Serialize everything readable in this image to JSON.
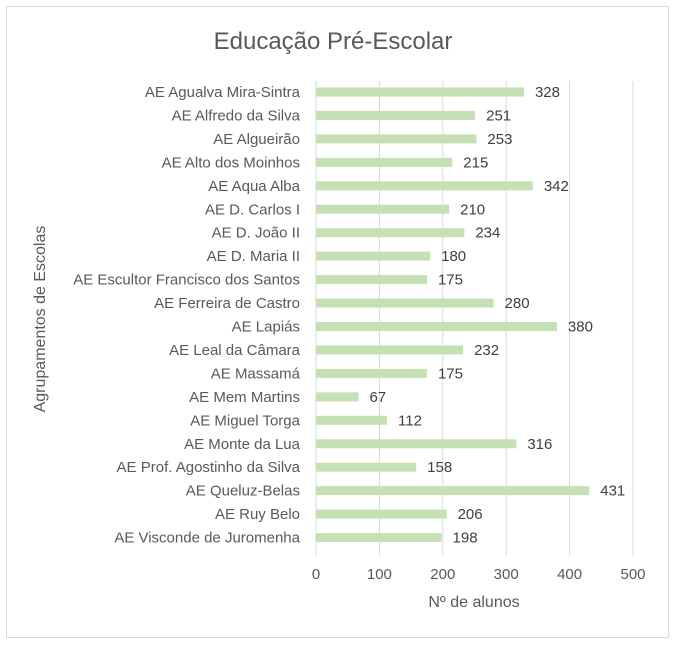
{
  "chart_data": {
    "type": "bar",
    "orientation": "horizontal",
    "title": "Educação Pré-Escolar",
    "xlabel": "Nº de alunos",
    "ylabel": "Agrupamentos de Escolas",
    "categories": [
      "AE Agualva Mira-Sintra",
      "AE Alfredo da Silva",
      "AE Algueirão",
      "AE Alto dos Moinhos",
      "AE Aqua Alba",
      "AE D. Carlos I",
      "AE D. João II",
      "AE D. Maria II",
      "AE Escultor Francisco dos Santos",
      "AE Ferreira de Castro",
      "AE Lapiás",
      "AE Leal da Câmara",
      "AE Massamá",
      "AE Mem Martins",
      "AE Miguel Torga",
      "AE Monte da Lua",
      "AE Prof. Agostinho da Silva",
      "AE Queluz-Belas",
      "AE Ruy Belo",
      "AE Visconde de Juromenha"
    ],
    "values": [
      328,
      251,
      253,
      215,
      342,
      210,
      234,
      180,
      175,
      280,
      380,
      232,
      175,
      67,
      112,
      316,
      158,
      431,
      206,
      198
    ],
    "xlim": [
      0,
      500
    ],
    "xticks": [
      0,
      100,
      200,
      300,
      400,
      500
    ],
    "grid": "vertical",
    "legend": "none",
    "bar_color": "#c5e0b4",
    "grid_color": "#d9d9d9"
  }
}
